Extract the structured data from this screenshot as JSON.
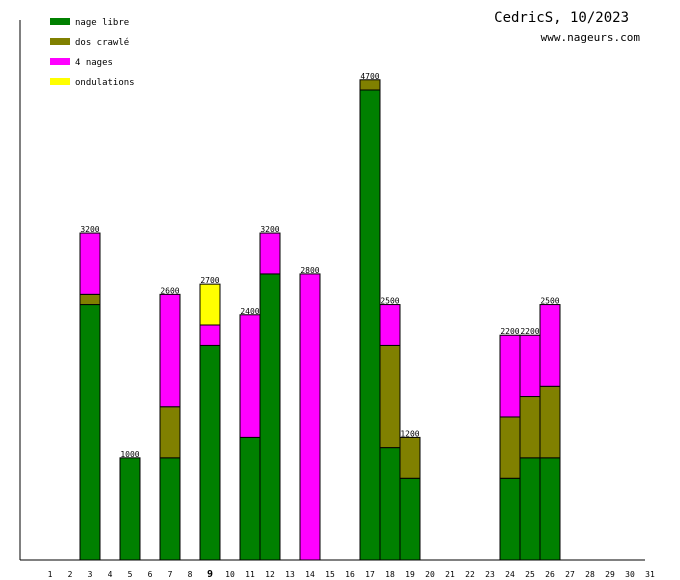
{
  "chart_data": {
    "type": "bar",
    "stacked": true,
    "title": "CedricS, 10/2023",
    "subtitle": "www.nageurs.com",
    "xlabel": "",
    "ylabel": "",
    "ylim": [
      0,
      5200
    ],
    "highlight_day": 9,
    "categories": [
      "1",
      "2",
      "3",
      "4",
      "5",
      "6",
      "7",
      "8",
      "9",
      "10",
      "11",
      "12",
      "13",
      "14",
      "15",
      "16",
      "17",
      "18",
      "19",
      "20",
      "21",
      "22",
      "23",
      "24",
      "25",
      "26",
      "27",
      "28",
      "29",
      "30",
      "31"
    ],
    "series": [
      {
        "name": "nage libre",
        "color": "#008000",
        "values": [
          0,
          0,
          2500,
          0,
          1000,
          0,
          1000,
          0,
          2100,
          0,
          1200,
          2800,
          0,
          0,
          0,
          0,
          4600,
          1100,
          800,
          0,
          0,
          0,
          0,
          800,
          1000,
          1000,
          0,
          0,
          0,
          0,
          0
        ]
      },
      {
        "name": "dos crawlé",
        "color": "#808000",
        "values": [
          0,
          0,
          100,
          0,
          0,
          0,
          500,
          0,
          0,
          0,
          0,
          0,
          0,
          0,
          0,
          0,
          100,
          1000,
          400,
          0,
          0,
          0,
          0,
          600,
          600,
          700,
          0,
          0,
          0,
          0,
          0
        ]
      },
      {
        "name": "4 nages",
        "color": "#ff00ff",
        "values": [
          0,
          0,
          600,
          0,
          0,
          0,
          1100,
          0,
          200,
          0,
          1200,
          400,
          0,
          2800,
          0,
          0,
          0,
          400,
          0,
          0,
          0,
          0,
          0,
          800,
          600,
          800,
          0,
          0,
          0,
          0,
          0
        ]
      },
      {
        "name": "ondulations",
        "color": "#ffff00",
        "values": [
          0,
          0,
          0,
          0,
          0,
          0,
          0,
          0,
          400,
          0,
          0,
          0,
          0,
          0,
          0,
          0,
          0,
          0,
          0,
          0,
          0,
          0,
          0,
          0,
          0,
          0,
          0,
          0,
          0,
          0,
          0
        ]
      }
    ],
    "totals": [
      "",
      "",
      "3200",
      "",
      "1000",
      "",
      "2600",
      "",
      "2700",
      "",
      "2400",
      "3200",
      "",
      "2800",
      "",
      "",
      "4700",
      "2500",
      "1200",
      "",
      "",
      "",
      "",
      "2200",
      "2200",
      "2500",
      "",
      "",
      "",
      "",
      ""
    ],
    "grid": false,
    "legend": "top-left"
  }
}
